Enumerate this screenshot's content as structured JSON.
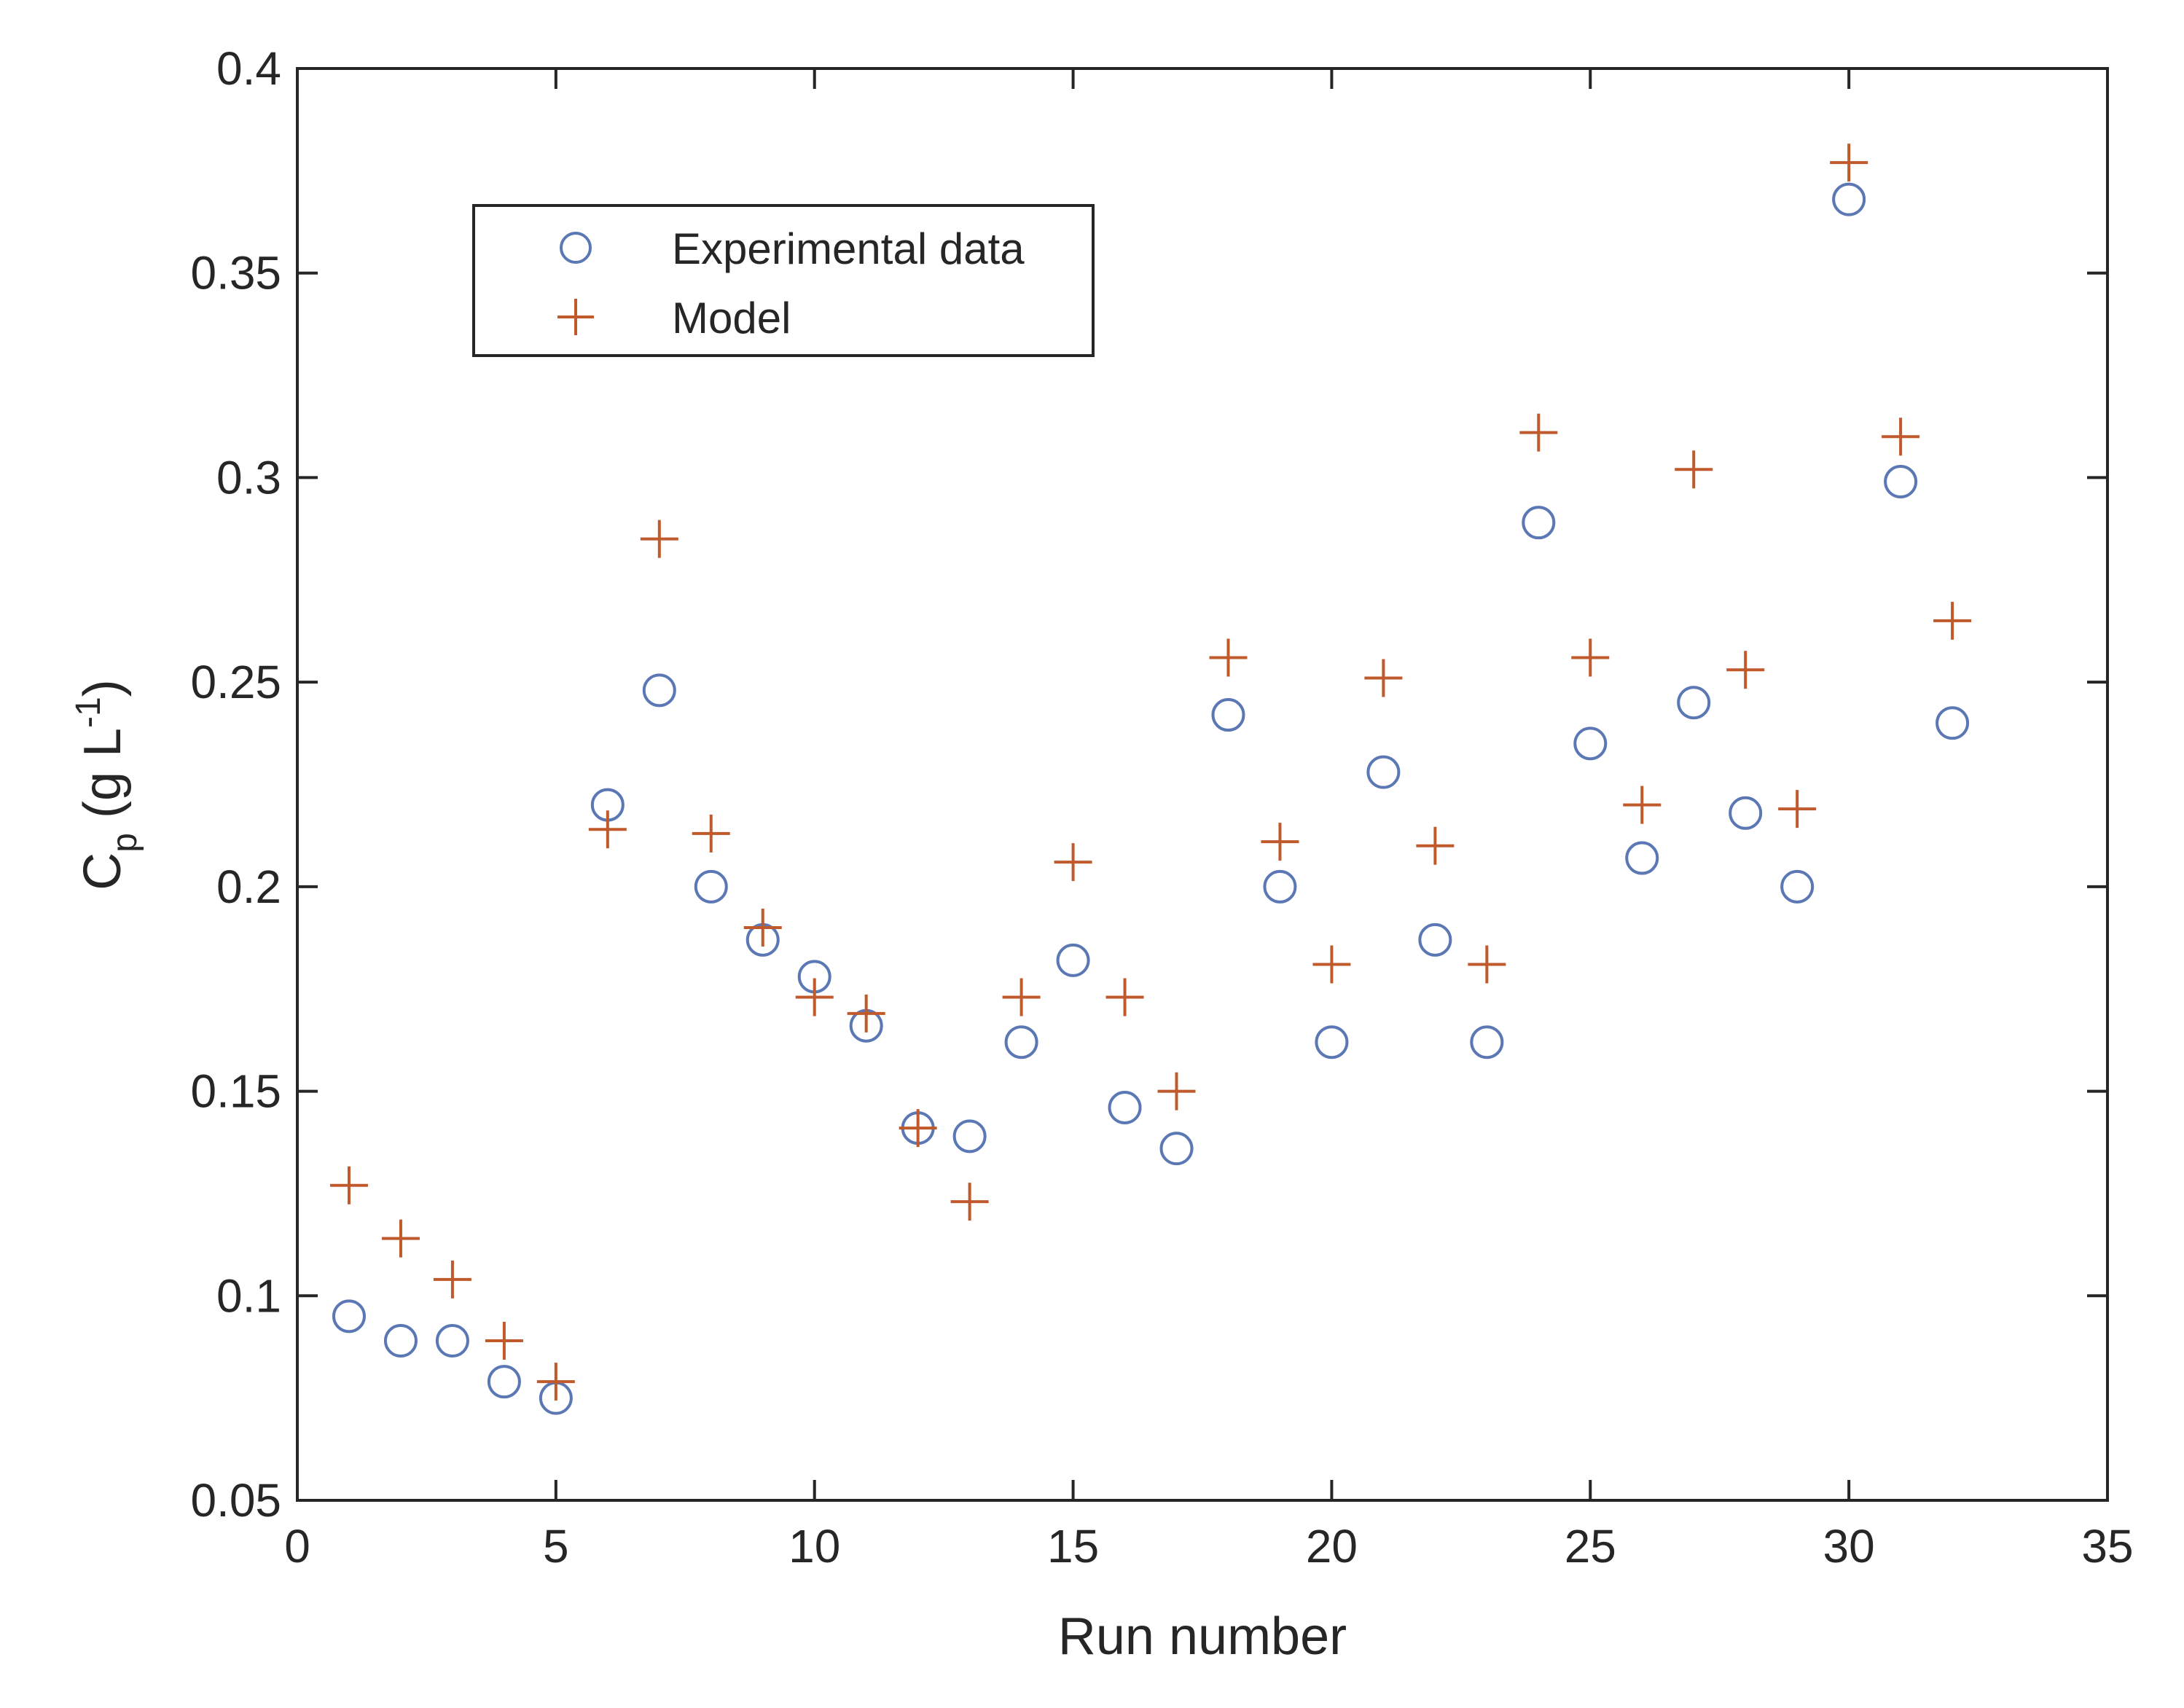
{
  "chart_data": {
    "type": "scatter",
    "title": "",
    "xlabel": "Run number",
    "ylabel": {
      "main": "C",
      "sub": "p",
      "units_open": " (g L",
      "units_sup": "-1",
      "units_close": ")"
    },
    "xlim": [
      0,
      35
    ],
    "ylim": [
      0.05,
      0.4
    ],
    "xticks": [
      0,
      5,
      10,
      15,
      20,
      25,
      30,
      35
    ],
    "xtick_labels": [
      "0",
      "5",
      "10",
      "15",
      "20",
      "25",
      "30",
      "35"
    ],
    "yticks": [
      0.05,
      0.1,
      0.15,
      0.2,
      0.25,
      0.3,
      0.35,
      0.4
    ],
    "ytick_labels": [
      "0.05",
      "0.1",
      "0.15",
      "0.2",
      "0.25",
      "0.3",
      "0.35",
      "0.4"
    ],
    "grid": false,
    "legend_position": "top-left",
    "series": [
      {
        "name": "Experimental data",
        "marker": "circle",
        "color": "#5b78b5",
        "x": [
          1,
          2,
          3,
          4,
          5,
          6,
          7,
          8,
          9,
          10,
          11,
          12,
          13,
          14,
          15,
          16,
          17,
          18,
          19,
          20,
          21,
          22,
          23,
          24,
          25,
          26,
          27,
          28,
          29,
          30,
          31,
          32
        ],
        "values": [
          0.095,
          0.089,
          0.089,
          0.079,
          0.075,
          0.22,
          0.248,
          0.2,
          0.187,
          0.178,
          0.166,
          0.141,
          0.139,
          0.162,
          0.182,
          0.146,
          0.136,
          0.242,
          0.2,
          0.162,
          0.228,
          0.187,
          0.162,
          0.289,
          0.235,
          0.207,
          0.245,
          0.218,
          0.2,
          0.368,
          0.299,
          0.24
        ]
      },
      {
        "name": "Model",
        "marker": "plus",
        "color": "#c0592b",
        "x": [
          1,
          2,
          3,
          4,
          5,
          6,
          7,
          8,
          9,
          10,
          11,
          12,
          13,
          14,
          15,
          16,
          17,
          18,
          19,
          20,
          21,
          22,
          23,
          24,
          25,
          26,
          27,
          28,
          29,
          30,
          31,
          32
        ],
        "values": [
          0.127,
          0.114,
          0.104,
          0.089,
          0.079,
          0.214,
          0.285,
          0.213,
          0.19,
          0.173,
          0.169,
          0.141,
          0.123,
          0.173,
          0.206,
          0.173,
          0.15,
          0.256,
          0.211,
          0.181,
          0.251,
          0.21,
          0.181,
          0.311,
          0.256,
          0.22,
          0.302,
          0.253,
          0.219,
          0.377,
          0.31,
          0.265
        ]
      }
    ]
  }
}
